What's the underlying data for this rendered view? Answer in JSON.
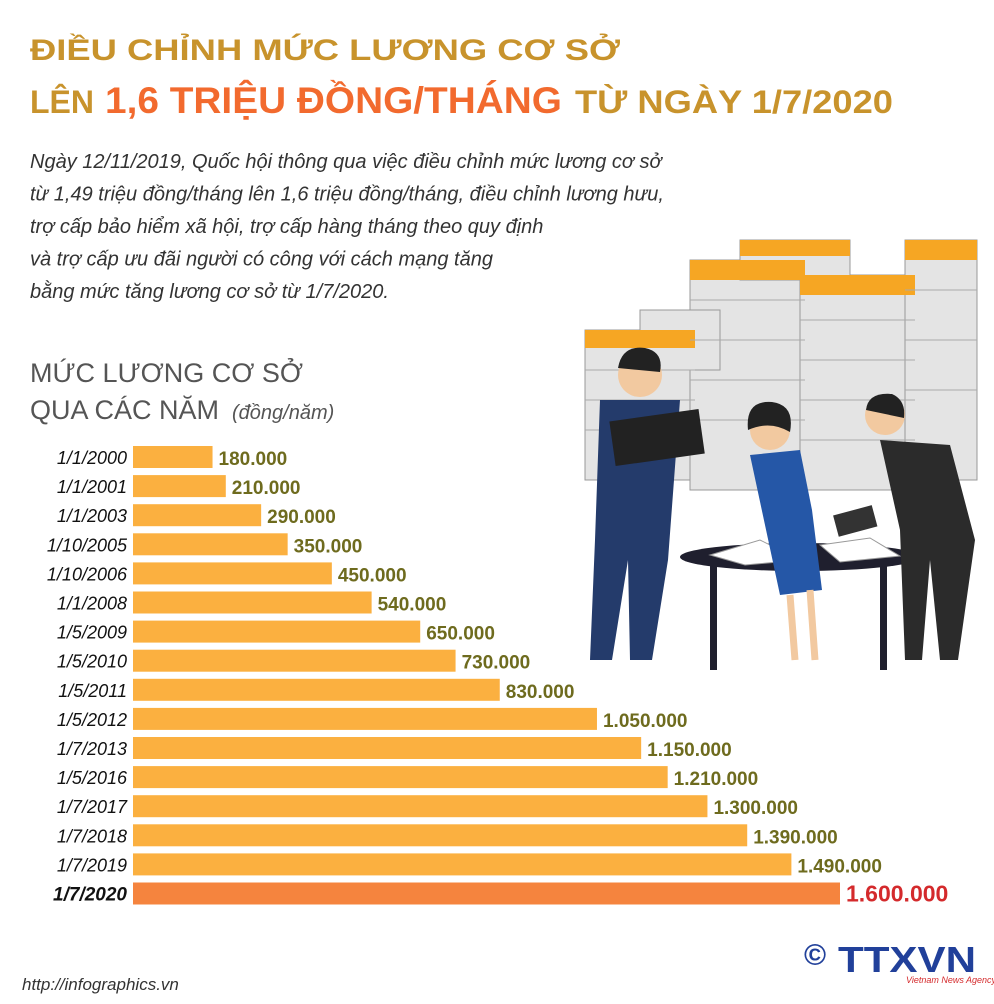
{
  "header": {
    "title_line1": "ĐIỀU CHỈNH MỨC LƯƠNG CƠ SỞ",
    "title_line2_start": "LÊN",
    "title_line2_highlight": "1,6 TRIỆU ĐỒNG/THÁNG",
    "title_line2_end": "TỪ NGÀY 1/7/2020"
  },
  "intro": [
    "Ngày 12/11/2019, Quốc hội thông qua việc điều chỉnh mức lương cơ sở",
    "từ 1,49 triệu đồng/tháng lên 1,6 triệu đồng/tháng, điều chỉnh lương hưu,",
    "trợ cấp bảo hiểm xã hội, trợ cấp hàng tháng theo quy định",
    "và trợ cấp ưu đãi người có công với cách mạng tăng",
    "bằng mức tăng lương cơ sở từ 1/7/2020."
  ],
  "chart_data": {
    "type": "hbar",
    "title_lines": [
      "MỨC LƯƠNG CƠ SỞ",
      "QUA CÁC NĂM"
    ],
    "unit": "(đồng/năm)",
    "categories": [
      "1/1/2000",
      "1/1/2001",
      "1/1/2003",
      "1/10/2005",
      "1/10/2006",
      "1/1/2008",
      "1/5/2009",
      "1/5/2010",
      "1/5/2011",
      "1/5/2012",
      "1/7/2013",
      "1/5/2016",
      "1/7/2017",
      "1/7/2018",
      "1/7/2019",
      "1/7/2020"
    ],
    "values": [
      180000,
      210000,
      290000,
      350000,
      450000,
      540000,
      650000,
      730000,
      830000,
      1050000,
      1150000,
      1210000,
      1300000,
      1390000,
      1490000,
      1600000
    ],
    "value_labels": [
      "180.000",
      "210.000",
      "290.000",
      "350.000",
      "450.000",
      "540.000",
      "650.000",
      "730.000",
      "830.000",
      "1.050.000",
      "1.150.000",
      "1.210.000",
      "1.300.000",
      "1.390.000",
      "1.490.000",
      "1.600.000"
    ],
    "colors": [
      "#fbb040",
      "#fbb040",
      "#fbb040",
      "#fbb040",
      "#fbb040",
      "#fbb040",
      "#fbb040",
      "#fbb040",
      "#fbb040",
      "#fbb040",
      "#fbb040",
      "#fbb040",
      "#fbb040",
      "#fbb040",
      "#fbb040",
      "#f5843e"
    ],
    "label_colors": [
      "#6e6b1e",
      "#6e6b1e",
      "#6e6b1e",
      "#6e6b1e",
      "#6e6b1e",
      "#6e6b1e",
      "#6e6b1e",
      "#6e6b1e",
      "#6e6b1e",
      "#6e6b1e",
      "#6e6b1e",
      "#6e6b1e",
      "#6e6b1e",
      "#6e6b1e",
      "#6e6b1e",
      "#d42a2c"
    ]
  },
  "footer": {
    "url": "http://infographics.vn",
    "copyright": "©",
    "agency": "TTXVN",
    "agency_sub": "Vietnam News Agency"
  }
}
